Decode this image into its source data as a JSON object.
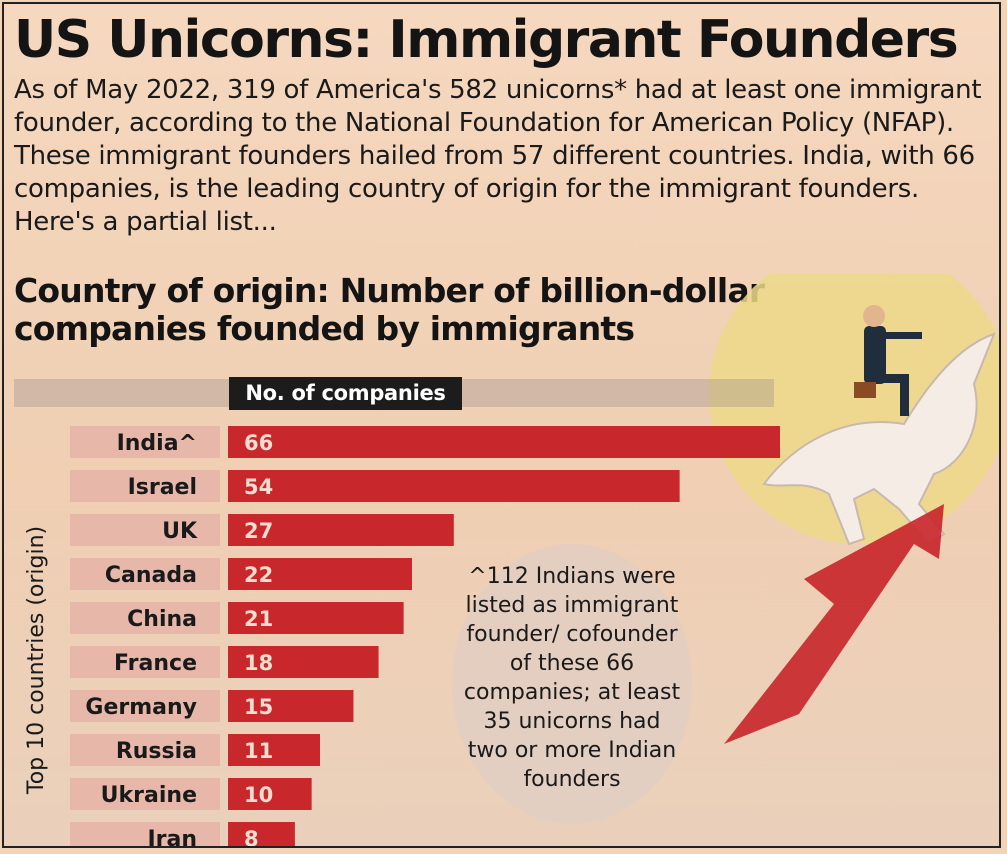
{
  "title": "US Unicorns: Immigrant Founders",
  "intro": "As of May 2022, 319 of America's 582 unicorns* had at least one immigrant founder, according to the National Foundation for American Policy (NFAP). These immigrant founders hailed from 57 different countries. India, with 66 companies, is the leading country of origin for the immigrant founders. Here's a partial list...",
  "note": "^112 Indians were listed as immigrant founder/ cofounder of these 66 companies; at least 35 unicorns had two or more Indian founders",
  "colors": {
    "bar": "#c8282c",
    "label_bg": "#e7b8aa",
    "header": "#1c1c1c"
  },
  "chart_data": {
    "type": "bar",
    "orientation": "horizontal",
    "title": "Country of origin: Number of billion-dollar companies founded by immigrants",
    "xlabel": "No. of companies",
    "ylabel": "Top 10 countries (origin)",
    "categories": [
      "India^",
      "Israel",
      "UK",
      "Canada",
      "China",
      "France",
      "Germany",
      "Russia",
      "Ukraine",
      "Iran"
    ],
    "values": [
      66,
      54,
      27,
      22,
      21,
      18,
      15,
      11,
      10,
      8
    ],
    "xlim": [
      0,
      66
    ],
    "data_labels": true,
    "grid": false
  }
}
